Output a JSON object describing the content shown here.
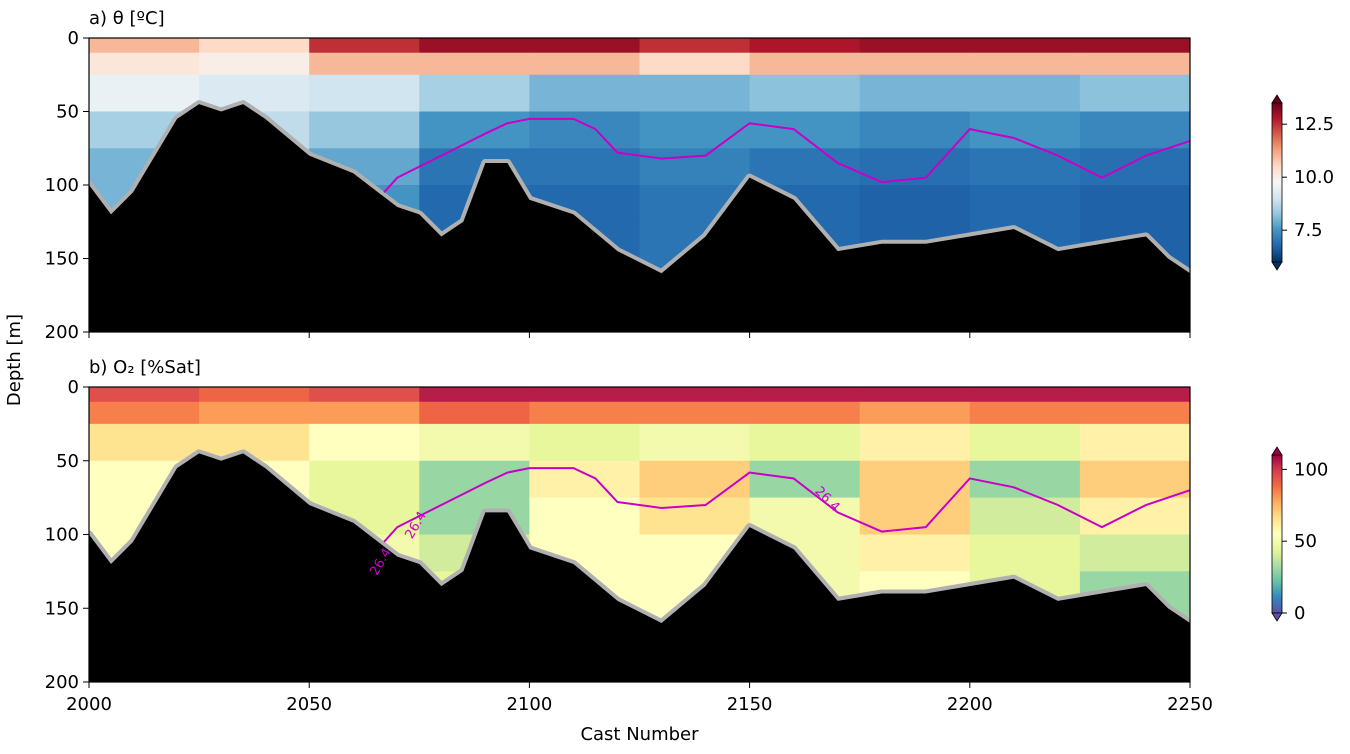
{
  "chart_data": [
    {
      "type": "section",
      "title": "a) θ [ºC]",
      "ylabel": "Depth [m]",
      "xlim": [
        2000,
        2250
      ],
      "xticks": [
        2000,
        2050,
        2100,
        2150,
        2200,
        2250
      ],
      "ylim": [
        200,
        0
      ],
      "yticks": [
        0,
        50,
        100,
        150,
        200
      ],
      "field": {
        "x_edges": [
          2000,
          2025,
          2050,
          2075,
          2100,
          2125,
          2150,
          2175,
          2200,
          2225,
          2250
        ],
        "depth_edges": [
          0,
          10,
          25,
          50,
          75,
          100,
          125,
          175
        ],
        "values": [
          [
            11,
            10.5,
            12.5,
            13,
            13,
            12.5,
            12.8,
            13,
            13,
            13
          ],
          [
            10.2,
            10,
            11,
            11,
            11,
            10.5,
            11,
            11,
            11,
            11
          ],
          [
            9.5,
            9.2,
            9,
            8.5,
            8,
            8,
            8.2,
            8,
            8,
            8.2
          ],
          [
            8.5,
            8.8,
            8.3,
            7.5,
            7.3,
            7.5,
            7.5,
            7.3,
            7.5,
            7.3
          ],
          [
            8,
            8.5,
            7.8,
            7,
            7,
            7.2,
            7,
            6.9,
            7,
            6.9
          ],
          [
            8,
            8.5,
            7.5,
            6.8,
            6.8,
            7,
            6.8,
            6.7,
            6.8,
            6.7
          ],
          [
            8,
            8.5,
            7.5,
            6.8,
            6.8,
            7,
            6.8,
            6.7,
            6.8,
            6.7
          ]
        ]
      },
      "clim": [
        6,
        13.5
      ],
      "cticks": [
        7.5,
        {
          "value": 10,
          "label": "10.0"
        },
        12.5
      ],
      "cmap": [
        "#053061",
        "#2166ac",
        "#4393c3",
        "#92c5de",
        "#d1e5f0",
        "#f7f7f7",
        "#fddbc7",
        "#f4a582",
        "#d6604d",
        "#b2182b",
        "#67001f"
      ],
      "bathymetry": {
        "x": [
          2000,
          2005,
          2010,
          2015,
          2020,
          2025,
          2030,
          2035,
          2040,
          2050,
          2060,
          2070,
          2075,
          2080,
          2085,
          2090,
          2095,
          2100,
          2110,
          2120,
          2130,
          2140,
          2150,
          2160,
          2170,
          2180,
          2190,
          2200,
          2210,
          2220,
          2230,
          2240,
          2245,
          2250
        ],
        "depth": [
          100,
          120,
          105,
          80,
          55,
          45,
          50,
          45,
          55,
          80,
          92,
          115,
          120,
          135,
          125,
          85,
          85,
          110,
          120,
          145,
          160,
          135,
          95,
          110,
          145,
          140,
          140,
          135,
          130,
          145,
          140,
          135,
          150,
          160
        ]
      },
      "isopycnal": {
        "name": "26.4",
        "color": "#c800c8",
        "x": [
          2067,
          2070,
          2080,
          2090,
          2095,
          2100,
          2110,
          2115,
          2120,
          2130,
          2140,
          2150,
          2160,
          2170,
          2180,
          2190,
          2200,
          2210,
          2220,
          2230,
          2240,
          2250
        ],
        "depth": [
          105,
          95,
          80,
          65,
          58,
          55,
          55,
          62,
          78,
          82,
          80,
          58,
          62,
          85,
          98,
          95,
          62,
          68,
          80,
          95,
          80,
          70
        ]
      }
    },
    {
      "type": "section",
      "title": "b) O₂ [%Sat]",
      "xlabel": "Cast Number",
      "xlim": [
        2000,
        2250
      ],
      "xticks": [
        2000,
        2050,
        2100,
        2150,
        2200,
        2250
      ],
      "ylim": [
        200,
        0
      ],
      "yticks": [
        0,
        50,
        100,
        150,
        200
      ],
      "field": {
        "x_edges": [
          2000,
          2025,
          2050,
          2075,
          2100,
          2125,
          2150,
          2175,
          2200,
          2225,
          2250
        ],
        "depth_edges": [
          0,
          10,
          25,
          50,
          75,
          100,
          125,
          175
        ],
        "values": [
          [
            95,
            90,
            95,
            105,
            105,
            105,
            105,
            105,
            105,
            105
          ],
          [
            85,
            80,
            80,
            90,
            85,
            85,
            85,
            80,
            85,
            85
          ],
          [
            65,
            65,
            55,
            50,
            45,
            50,
            45,
            60,
            45,
            60
          ],
          [
            55,
            55,
            45,
            30,
            60,
            70,
            30,
            70,
            30,
            70
          ],
          [
            55,
            50,
            45,
            30,
            55,
            65,
            50,
            70,
            40,
            60
          ],
          [
            55,
            50,
            50,
            40,
            55,
            55,
            50,
            60,
            45,
            40
          ],
          [
            55,
            50,
            50,
            45,
            55,
            55,
            50,
            55,
            45,
            30
          ]
        ]
      },
      "clim": [
        0,
        110
      ],
      "cticks": [
        0,
        50,
        100
      ],
      "cmap": [
        "#5e4fa2",
        "#3288bd",
        "#66c2a5",
        "#abdda4",
        "#e6f598",
        "#ffffbf",
        "#fee08b",
        "#fdae61",
        "#f46d43",
        "#d53e4f",
        "#9e0142"
      ],
      "bathymetry": {
        "x": [
          2000,
          2005,
          2010,
          2015,
          2020,
          2025,
          2030,
          2035,
          2040,
          2050,
          2060,
          2070,
          2075,
          2080,
          2085,
          2090,
          2095,
          2100,
          2110,
          2120,
          2130,
          2140,
          2150,
          2160,
          2170,
          2180,
          2190,
          2200,
          2210,
          2220,
          2230,
          2240,
          2245,
          2250
        ],
        "depth": [
          100,
          120,
          105,
          80,
          55,
          45,
          50,
          45,
          55,
          80,
          92,
          115,
          120,
          135,
          125,
          85,
          85,
          110,
          120,
          145,
          160,
          135,
          95,
          110,
          145,
          140,
          140,
          135,
          130,
          145,
          140,
          135,
          150,
          160
        ]
      },
      "isopycnal": {
        "name": "26.4",
        "color": "#c800c8",
        "x": [
          2067,
          2070,
          2080,
          2090,
          2095,
          2100,
          2110,
          2115,
          2120,
          2130,
          2140,
          2150,
          2160,
          2170,
          2180,
          2190,
          2200,
          2210,
          2220,
          2230,
          2240,
          2250
        ],
        "depth": [
          105,
          95,
          80,
          65,
          58,
          55,
          55,
          62,
          78,
          82,
          80,
          58,
          62,
          85,
          98,
          95,
          62,
          68,
          80,
          95,
          80,
          70
        ]
      }
    }
  ]
}
